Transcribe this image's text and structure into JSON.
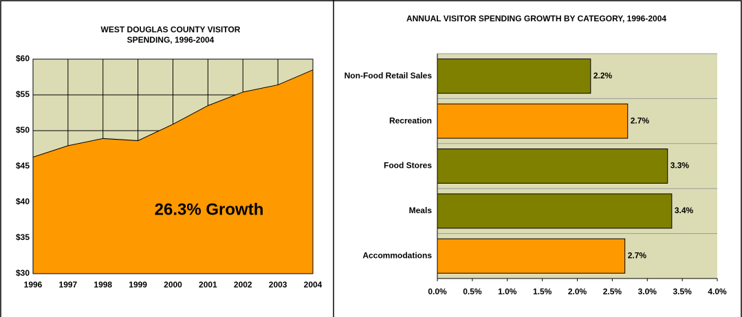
{
  "chart_data": [
    {
      "type": "area",
      "title": "WEST DOUGLAS COUNTY VISITOR SPENDING, 1996-2004",
      "x": [
        1996,
        1997,
        1998,
        1999,
        2000,
        2001,
        2002,
        2003,
        2004
      ],
      "values": [
        46.3,
        47.9,
        48.9,
        48.6,
        50.9,
        53.5,
        55.4,
        56.4,
        58.5
      ],
      "color": "#ff9900",
      "xlim": [
        1996,
        2004
      ],
      "xticks": [
        1996,
        1997,
        1998,
        1999,
        2000,
        2001,
        2002,
        2003,
        2004
      ],
      "ylim": [
        30,
        60
      ],
      "yticks": [
        {
          "value": 30,
          "label": "$30"
        },
        {
          "value": 35,
          "label": "$35"
        },
        {
          "value": 40,
          "label": "$40"
        },
        {
          "value": 45,
          "label": "$45"
        },
        {
          "value": 50,
          "label": "$50"
        },
        {
          "value": 55,
          "label": "$55"
        },
        {
          "value": 60,
          "label": "$60"
        }
      ],
      "grid": true,
      "annotation": "26.3% Growth"
    },
    {
      "type": "hbar",
      "title": "ANNUAL VISITOR SPENDING GROWTH BY CATEGORY, 1996-2004",
      "categories": [
        "Non-Food Retail Sales",
        "Recreation",
        "Food Stores",
        "Meals",
        "Accommodations"
      ],
      "values": [
        2.19,
        2.72,
        3.29,
        3.35,
        2.68
      ],
      "value_labels": [
        "2.2%",
        "2.7%",
        "3.3%",
        "3.4%",
        "2.7%"
      ],
      "colors": [
        "#808000",
        "#ff9900",
        "#808000",
        "#808000",
        "#ff9900"
      ],
      "xlim": [
        0,
        4
      ],
      "xticks": [
        {
          "value": 0,
          "label": "0.0%"
        },
        {
          "value": 0.5,
          "label": "0.5%"
        },
        {
          "value": 1,
          "label": "1.0%"
        },
        {
          "value": 1.5,
          "label": "1.5%"
        },
        {
          "value": 2,
          "label": "2.0%"
        },
        {
          "value": 2.5,
          "label": "2.5%"
        },
        {
          "value": 3,
          "label": "3.0%"
        },
        {
          "value": 3.5,
          "label": "3.5%"
        },
        {
          "value": 4,
          "label": "4.0%"
        }
      ],
      "grid": true
    }
  ]
}
